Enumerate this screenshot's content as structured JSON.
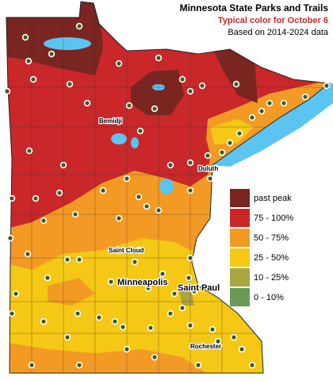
{
  "header": {
    "title": "Minnesota State Parks and Trails",
    "subtitle": "Typical color for October 6",
    "note": "Based on 2014-2024 data"
  },
  "legend": [
    {
      "label": "past peak",
      "color": "#7a2520"
    },
    {
      "label": "75 - 100%",
      "color": "#c9272a"
    },
    {
      "label": "50 - 75%",
      "color": "#f39a25"
    },
    {
      "label": "25 - 50%",
      "color": "#f4c814"
    },
    {
      "label": "10 - 25%",
      "color": "#aaa540"
    },
    {
      "label": "0 - 10%",
      "color": "#6a9a55"
    }
  ],
  "cities": [
    {
      "name": "Bemidji"
    },
    {
      "name": "Duluth"
    },
    {
      "name": "Saint Cloud"
    },
    {
      "name": "Minneapolis"
    },
    {
      "name": "Saint Paul"
    },
    {
      "name": "Rochester"
    }
  ]
}
